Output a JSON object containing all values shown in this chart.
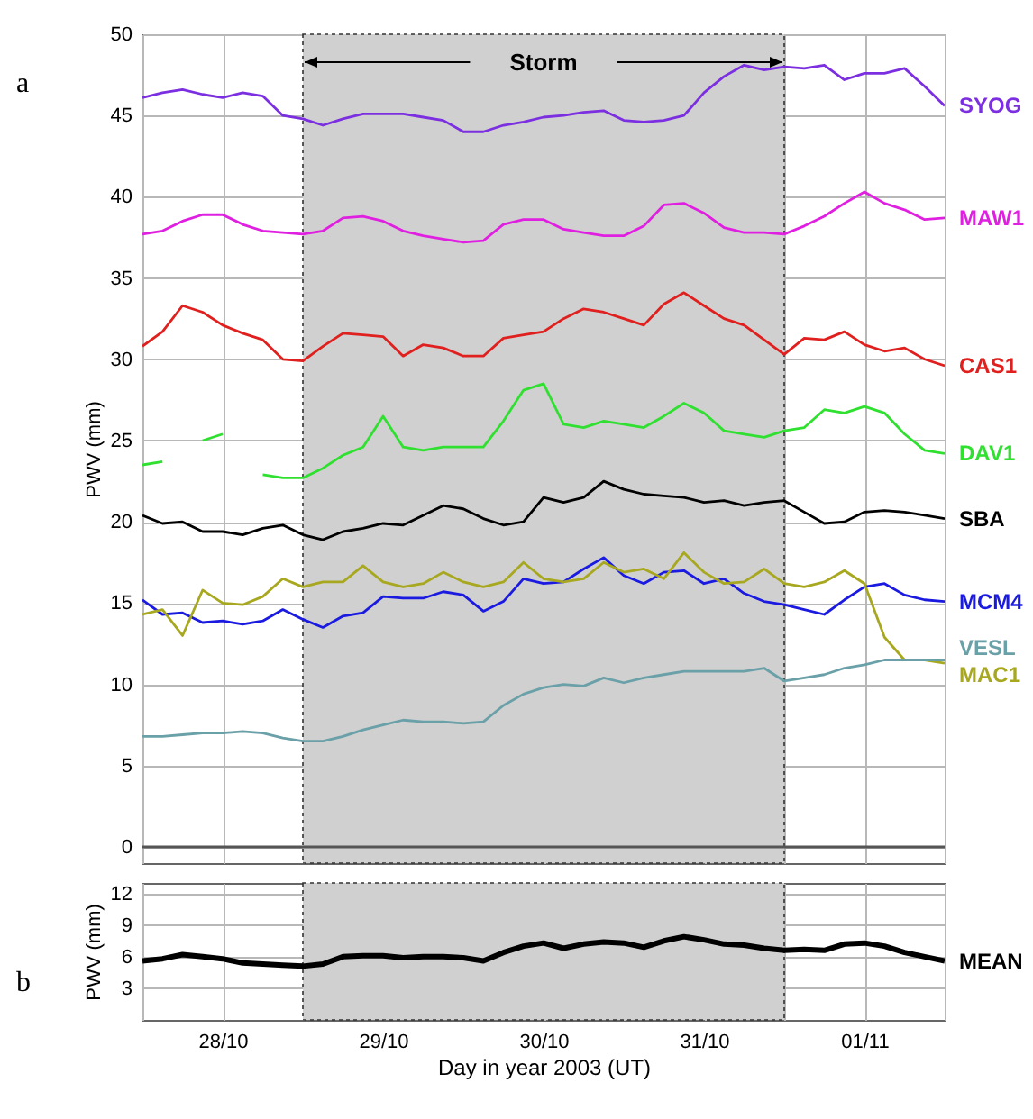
{
  "chart_data": [
    {
      "type": "line",
      "ylabel": "PWV (mm)",
      "x": [
        "2003-10-27T12:00",
        "2003-10-27T15:00",
        "2003-10-27T18:00",
        "2003-10-27T21:00",
        "2003-10-28T00:00",
        "2003-10-28T03:00",
        "2003-10-28T06:00",
        "2003-10-28T09:00",
        "2003-10-28T12:00",
        "2003-10-28T15:00",
        "2003-10-28T18:00",
        "2003-10-28T21:00",
        "2003-10-29T00:00",
        "2003-10-29T03:00",
        "2003-10-29T06:00",
        "2003-10-29T09:00",
        "2003-10-29T12:00",
        "2003-10-29T15:00",
        "2003-10-29T18:00",
        "2003-10-29T21:00",
        "2003-10-30T00:00",
        "2003-10-30T03:00",
        "2003-10-30T06:00",
        "2003-10-30T09:00",
        "2003-10-30T12:00",
        "2003-10-30T15:00",
        "2003-10-30T18:00",
        "2003-10-30T21:00",
        "2003-10-31T00:00",
        "2003-10-31T03:00",
        "2003-10-31T06:00",
        "2003-10-31T09:00",
        "2003-10-31T12:00",
        "2003-10-31T15:00",
        "2003-10-31T18:00",
        "2003-10-31T21:00",
        "2003-11-01T00:00",
        "2003-11-01T03:00",
        "2003-11-01T06:00",
        "2003-11-01T09:00",
        "2003-11-01T12:00"
      ],
      "series": [
        {
          "name": "SYOG",
          "color": "#7b2fe0",
          "values": [
            46.1,
            46.4,
            46.6,
            46.3,
            46.1,
            46.4,
            46.2,
            45.0,
            44.8,
            44.4,
            44.8,
            45.1,
            45.1,
            45.1,
            44.9,
            44.7,
            44.0,
            44.0,
            44.4,
            44.6,
            44.9,
            45.0,
            45.2,
            45.3,
            44.7,
            44.6,
            44.7,
            45.0,
            46.4,
            47.4,
            48.1,
            47.8,
            48.0,
            47.9,
            48.1,
            47.2,
            47.6,
            47.6,
            47.9,
            46.8,
            45.6
          ]
        },
        {
          "name": "MAW1",
          "color": "#e020e0",
          "values": [
            37.7,
            37.9,
            38.5,
            38.9,
            38.9,
            38.3,
            37.9,
            37.8,
            37.7,
            37.9,
            38.7,
            38.8,
            38.5,
            37.9,
            37.6,
            37.4,
            37.2,
            37.3,
            38.3,
            38.6,
            38.6,
            38.0,
            37.8,
            37.6,
            37.6,
            38.2,
            39.5,
            39.6,
            39.0,
            38.1,
            37.8,
            37.8,
            37.7,
            38.2,
            38.8,
            39.6,
            40.3,
            39.6,
            39.2,
            38.6,
            38.7
          ]
        },
        {
          "name": "CAS1",
          "color": "#e0201e",
          "values": [
            30.8,
            31.7,
            33.3,
            32.9,
            32.1,
            31.6,
            31.2,
            30.0,
            29.9,
            30.8,
            31.6,
            31.5,
            31.4,
            30.2,
            30.9,
            30.7,
            30.2,
            30.2,
            31.3,
            31.5,
            31.7,
            32.5,
            33.1,
            32.9,
            32.5,
            32.1,
            33.4,
            34.1,
            33.3,
            32.5,
            32.1,
            31.2,
            30.3,
            31.3,
            31.2,
            31.7,
            30.9,
            30.5,
            30.7,
            30.0,
            29.6
          ]
        },
        {
          "name": "DAV1",
          "color": "#30e030",
          "values": [
            23.5,
            23.7,
            null,
            25.0,
            25.4,
            null,
            22.9,
            22.7,
            22.7,
            23.3,
            24.1,
            24.6,
            26.5,
            24.6,
            24.4,
            24.6,
            24.6,
            24.6,
            26.2,
            28.1,
            28.5,
            26.0,
            25.8,
            26.2,
            26.0,
            25.8,
            26.5,
            27.3,
            26.7,
            25.6,
            25.4,
            25.2,
            25.6,
            25.8,
            26.9,
            26.7,
            27.1,
            26.7,
            25.4,
            24.4,
            24.2
          ]
        },
        {
          "name": "SBA",
          "color": "#000000",
          "values": [
            20.4,
            19.9,
            20.0,
            19.4,
            19.4,
            19.2,
            19.6,
            19.8,
            19.2,
            18.9,
            19.4,
            19.6,
            19.9,
            19.8,
            20.4,
            21.0,
            20.8,
            20.2,
            19.8,
            20.0,
            21.5,
            21.2,
            21.5,
            22.5,
            22.0,
            21.7,
            21.6,
            21.5,
            21.2,
            21.3,
            21.0,
            21.2,
            21.3,
            20.6,
            19.9,
            20.0,
            20.6,
            20.7,
            20.6,
            20.4,
            20.2
          ]
        },
        {
          "name": "MCM4",
          "color": "#1a1ae0",
          "values": [
            15.2,
            14.3,
            14.4,
            13.8,
            13.9,
            13.7,
            13.9,
            14.6,
            14.0,
            13.5,
            14.2,
            14.4,
            15.4,
            15.3,
            15.3,
            15.7,
            15.5,
            14.5,
            15.1,
            16.5,
            16.2,
            16.3,
            17.1,
            17.8,
            16.7,
            16.2,
            16.9,
            17.0,
            16.2,
            16.5,
            15.6,
            15.1,
            14.9,
            14.6,
            14.3,
            15.2,
            16.0,
            16.2,
            15.5,
            15.2,
            15.1
          ]
        },
        {
          "name": "MAC1",
          "color": "#a8a820",
          "values": [
            14.3,
            14.6,
            13.0,
            15.8,
            15.0,
            14.9,
            15.4,
            16.5,
            16.0,
            16.3,
            16.3,
            17.3,
            16.3,
            16.0,
            16.2,
            16.9,
            16.3,
            16.0,
            16.3,
            17.5,
            16.5,
            16.3,
            16.5,
            17.5,
            16.9,
            17.1,
            16.5,
            18.1,
            16.9,
            16.2,
            16.3,
            17.1,
            16.2,
            16.0,
            16.3,
            17.0,
            16.2,
            12.9,
            11.5,
            11.5,
            11.3
          ]
        },
        {
          "name": "VESL",
          "color": "#6aa0a8",
          "values": [
            6.8,
            6.8,
            6.9,
            7.0,
            7.0,
            7.1,
            7.0,
            6.7,
            6.5,
            6.5,
            6.8,
            7.2,
            7.5,
            7.8,
            7.7,
            7.7,
            7.6,
            7.7,
            8.7,
            9.4,
            9.8,
            10.0,
            9.9,
            10.4,
            10.1,
            10.4,
            10.6,
            10.8,
            10.8,
            10.8,
            10.8,
            11.0,
            10.2,
            10.4,
            10.6,
            11.0,
            11.2,
            11.5,
            11.5,
            11.5,
            11.5
          ]
        }
      ],
      "xlim": [
        "2003-10-27T12:00",
        "2003-11-01T12:00"
      ],
      "xticks": [
        {
          "value": "2003-10-27T12:00",
          "label": null
        },
        {
          "value": "2003-10-28T00:00",
          "label": null
        },
        {
          "value": "2003-10-28T12:00",
          "label": null
        },
        {
          "value": "2003-10-29T00:00",
          "label": null
        },
        {
          "value": "2003-10-29T12:00",
          "label": null
        },
        {
          "value": "2003-10-30T00:00",
          "label": null
        },
        {
          "value": "2003-10-30T12:00",
          "label": null
        },
        {
          "value": "2003-10-31T00:00",
          "label": null
        },
        {
          "value": "2003-10-31T12:00",
          "label": null
        },
        {
          "value": "2003-11-01T00:00",
          "label": null
        },
        {
          "value": "2003-11-01T12:00",
          "label": null
        }
      ],
      "ylim": [
        -1,
        50
      ],
      "yticks": [
        0,
        5,
        10,
        15,
        20,
        25,
        30,
        35,
        40,
        45,
        50
      ],
      "grid": true,
      "tick_labels": "y",
      "bands": [
        {
          "axis": "x",
          "from": "2003-10-28T12:00",
          "to": "2003-10-31T12:00",
          "label": "Storm",
          "color": "#d0d0d0"
        }
      ],
      "ref_lines": [
        {
          "axis": "y",
          "value": 0,
          "color": "#555555"
        }
      ],
      "annotations": [
        "a"
      ]
    },
    {
      "type": "line",
      "ylabel": "PWV (mm)",
      "xlabel": "Day in year 2003 (UT)",
      "x": [
        "2003-10-27T12:00",
        "2003-10-27T15:00",
        "2003-10-27T18:00",
        "2003-10-27T21:00",
        "2003-10-28T00:00",
        "2003-10-28T03:00",
        "2003-10-28T06:00",
        "2003-10-28T09:00",
        "2003-10-28T12:00",
        "2003-10-28T15:00",
        "2003-10-28T18:00",
        "2003-10-28T21:00",
        "2003-10-29T00:00",
        "2003-10-29T03:00",
        "2003-10-29T06:00",
        "2003-10-29T09:00",
        "2003-10-29T12:00",
        "2003-10-29T15:00",
        "2003-10-29T18:00",
        "2003-10-29T21:00",
        "2003-10-30T00:00",
        "2003-10-30T03:00",
        "2003-10-30T06:00",
        "2003-10-30T09:00",
        "2003-10-30T12:00",
        "2003-10-30T15:00",
        "2003-10-30T18:00",
        "2003-10-30T21:00",
        "2003-10-31T00:00",
        "2003-10-31T03:00",
        "2003-10-31T06:00",
        "2003-10-31T09:00",
        "2003-10-31T12:00",
        "2003-10-31T15:00",
        "2003-10-31T18:00",
        "2003-10-31T21:00",
        "2003-11-01T00:00",
        "2003-11-01T03:00",
        "2003-11-01T06:00",
        "2003-11-01T09:00",
        "2003-11-01T12:00"
      ],
      "series": [
        {
          "name": "MEAN",
          "color": "#000000",
          "values": [
            5.6,
            5.8,
            6.2,
            6.0,
            5.8,
            5.4,
            5.3,
            5.2,
            5.1,
            5.3,
            6.0,
            6.1,
            6.1,
            5.9,
            6.0,
            6.0,
            5.9,
            5.6,
            6.4,
            7.0,
            7.3,
            6.8,
            7.2,
            7.4,
            7.3,
            6.9,
            7.5,
            7.9,
            7.6,
            7.2,
            7.1,
            6.8,
            6.6,
            6.7,
            6.6,
            7.2,
            7.3,
            7.0,
            6.4,
            6.0,
            5.6
          ]
        }
      ],
      "xlim": [
        "2003-10-27T12:00",
        "2003-11-01T12:00"
      ],
      "xticks": [
        {
          "value": "2003-10-27T12:00",
          "label": null
        },
        {
          "value": "2003-10-28T00:00",
          "label": "28/10"
        },
        {
          "value": "2003-10-28T12:00",
          "label": null
        },
        {
          "value": "2003-10-29T00:00",
          "label": "29/10"
        },
        {
          "value": "2003-10-29T12:00",
          "label": null
        },
        {
          "value": "2003-10-30T00:00",
          "label": "30/10"
        },
        {
          "value": "2003-10-30T12:00",
          "label": null
        },
        {
          "value": "2003-10-31T00:00",
          "label": "31/10"
        },
        {
          "value": "2003-10-31T12:00",
          "label": null
        },
        {
          "value": "2003-11-01T00:00",
          "label": "01/11"
        },
        {
          "value": "2003-11-01T12:00",
          "label": null
        }
      ],
      "ylim": [
        0,
        13
      ],
      "yticks": [
        3,
        6,
        9,
        12
      ],
      "grid": true,
      "bands": [
        {
          "axis": "x",
          "from": "2003-10-28T12:00",
          "to": "2003-10-31T12:00",
          "color": "#d0d0d0"
        }
      ],
      "annotations": [
        "b"
      ]
    }
  ]
}
